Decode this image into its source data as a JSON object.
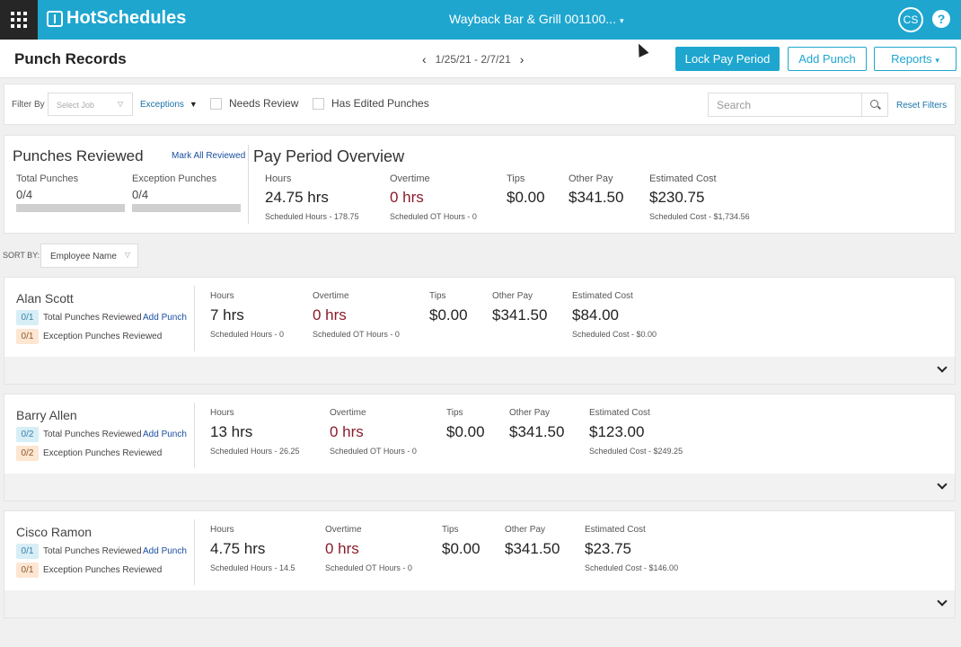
{
  "topbar": {
    "brand": "HotSchedules",
    "location": "Wayback Bar & Grill 001100...",
    "user_initials": "CS",
    "help_label": "?"
  },
  "header": {
    "title": "Punch Records",
    "period": "1/25/21 - 2/7/21",
    "lock_label": "Lock Pay Period",
    "add_punch_label": "Add Punch",
    "reports_label": "Reports"
  },
  "filters": {
    "filter_by_label": "Filter By",
    "job_placeholder": "Select Job",
    "exceptions_label": "Exceptions",
    "needs_review_label": "Needs Review",
    "has_edited_label": "Has Edited Punches",
    "search_placeholder": "Search",
    "reset_label": "Reset Filters"
  },
  "reviewed": {
    "title": "Punches Reviewed",
    "mark_all_label": "Mark All Reviewed",
    "total_label": "Total Punches",
    "total_value": "0/4",
    "total_progress": 0,
    "exception_label": "Exception Punches",
    "exception_value": "0/4",
    "exception_progress": 0
  },
  "overview": {
    "title": "Pay Period Overview",
    "hours_label": "Hours",
    "hours_value": "24.75 hrs",
    "hours_sub": "Scheduled Hours - 178.75",
    "overtime_label": "Overtime",
    "overtime_value": "0 hrs",
    "overtime_sub": "Scheduled OT Hours - 0",
    "tips_label": "Tips",
    "tips_value": "$0.00",
    "other_label": "Other Pay",
    "other_value": "$341.50",
    "cost_label": "Estimated Cost",
    "cost_value": "$230.75",
    "cost_sub": "Scheduled Cost - $1,734.56"
  },
  "sort": {
    "label": "SORT BY:",
    "value": "Employee Name"
  },
  "labels": {
    "total_reviewed": "Total Punches Reviewed",
    "exception_reviewed": "Exception Punches Reviewed",
    "add_punch": "Add Punch",
    "hours": "Hours",
    "overtime": "Overtime",
    "tips": "Tips",
    "other_pay": "Other Pay",
    "estimated_cost": "Estimated Cost"
  },
  "employees": [
    {
      "name": "Alan Scott",
      "total_badge": "0/1",
      "exception_badge": "0/1",
      "hours": "7 hrs",
      "hours_sub": "Scheduled Hours - 0",
      "overtime": "0 hrs",
      "overtime_sub": "Scheduled OT Hours - 0",
      "tips": "$0.00",
      "other_pay": "$341.50",
      "cost": "$84.00",
      "cost_sub": "Scheduled Cost - $0.00"
    },
    {
      "name": "Barry Allen",
      "total_badge": "0/2",
      "exception_badge": "0/2",
      "hours": "13 hrs",
      "hours_sub": "Scheduled Hours - 26.25",
      "overtime": "0 hrs",
      "overtime_sub": "Scheduled OT Hours - 0",
      "tips": "$0.00",
      "other_pay": "$341.50",
      "cost": "$123.00",
      "cost_sub": "Scheduled Cost - $249.25"
    },
    {
      "name": "Cisco Ramon",
      "total_badge": "0/1",
      "exception_badge": "0/1",
      "hours": "4.75 hrs",
      "hours_sub": "Scheduled Hours - 14.5",
      "overtime": "0 hrs",
      "overtime_sub": "Scheduled OT Hours - 0",
      "tips": "$0.00",
      "other_pay": "$341.50",
      "cost": "$23.75",
      "cost_sub": "Scheduled Cost - $146.00"
    }
  ]
}
